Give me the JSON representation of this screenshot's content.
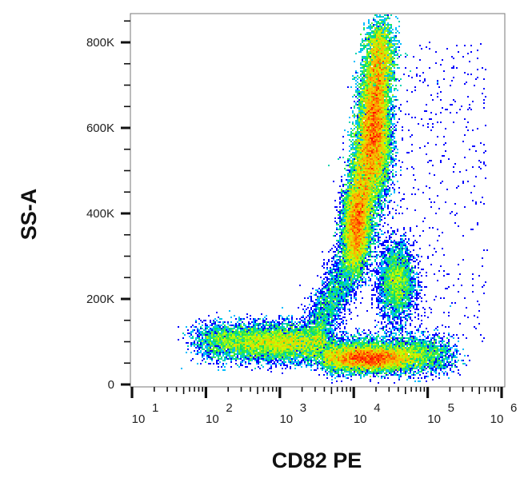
{
  "chart_data": {
    "type": "scatter",
    "subtype": "density dot plot",
    "xlabel": "CD82 PE",
    "ylabel": "SS-A",
    "x_scale": "log",
    "xlim": [
      10,
      1000000
    ],
    "ylim": [
      0,
      870000
    ],
    "x_ticks": [
      {
        "base": "10",
        "exp": "1",
        "value": 10
      },
      {
        "base": "10",
        "exp": "2",
        "value": 100
      },
      {
        "base": "10",
        "exp": "3",
        "value": 1000
      },
      {
        "base": "10",
        "exp": "4",
        "value": 10000
      },
      {
        "base": "10",
        "exp": "5",
        "value": 100000
      },
      {
        "base": "10",
        "exp": "6",
        "value": 1000000
      }
    ],
    "y_ticks": [
      {
        "label": "0",
        "value": 0
      },
      {
        "label": "200K",
        "value": 200000
      },
      {
        "label": "400K",
        "value": 400000
      },
      {
        "label": "600K",
        "value": 600000
      },
      {
        "label": "800K",
        "value": 800000
      }
    ],
    "grid": false,
    "colormap": [
      "#0000ff",
      "#00c8ff",
      "#00e060",
      "#c8ff00",
      "#ffb000",
      "#ff0000"
    ],
    "populations": [
      {
        "x_from": 10000,
        "x_to": 25000,
        "y_from": 280000,
        "y_to": 820000,
        "peak_x": 22000,
        "peak_y": 580000
      },
      {
        "x_from": 100,
        "x_to": 200000,
        "y_center": 75000,
        "peak_x": 16000,
        "peak_y": 60000
      },
      {
        "x_center": 35000,
        "y_center": 240000
      }
    ]
  }
}
